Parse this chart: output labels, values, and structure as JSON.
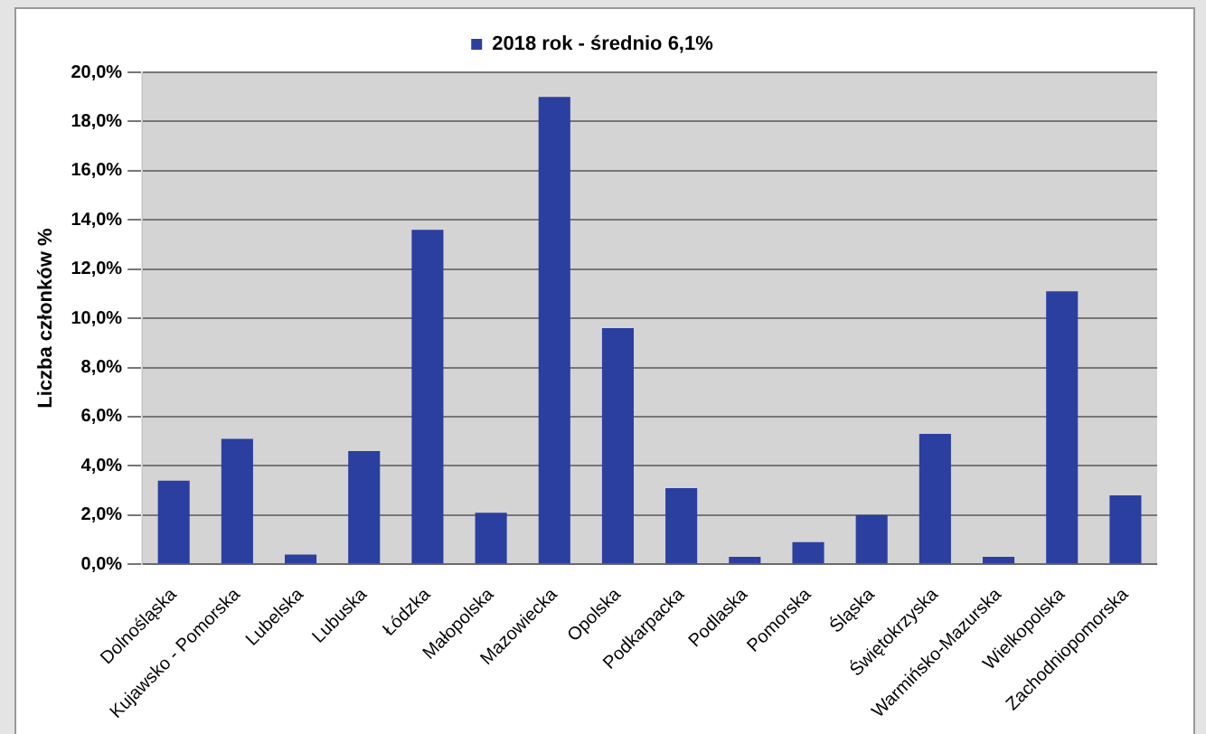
{
  "chart_data": {
    "type": "bar",
    "ylabel": "Liczba członków %",
    "categories": [
      "Dolnośląska",
      "Kujawsko - Pomorska",
      "Lubelska",
      "Lubuska",
      "Łódzka",
      "Małopolska",
      "Mazowiecka",
      "Opolska",
      "Podkarpacka",
      "Podlaska",
      "Pomorska",
      "Śląska",
      "Świętokrzyska",
      "Warmińsko-Mazurska",
      "Wielkopolska",
      "Zachodniopomorska"
    ],
    "series": [
      {
        "name": "2018 rok - średnio 6,1%",
        "color": "#2b3fa0",
        "values": [
          3.4,
          5.1,
          0.4,
          4.6,
          13.6,
          2.1,
          19.0,
          9.6,
          3.1,
          0.3,
          0.9,
          2.0,
          5.3,
          0.3,
          11.1,
          2.8
        ]
      }
    ],
    "ylim": [
      0,
      20
    ],
    "yticks": [
      {
        "value": 0,
        "label": "0,0%"
      },
      {
        "value": 2,
        "label": "2,0%"
      },
      {
        "value": 4,
        "label": "4,0%"
      },
      {
        "value": 6,
        "label": "6,0%"
      },
      {
        "value": 8,
        "label": "8,0%"
      },
      {
        "value": 10,
        "label": "10,0%"
      },
      {
        "value": 12,
        "label": "12,0%"
      },
      {
        "value": 14,
        "label": "14,0%"
      },
      {
        "value": 16,
        "label": "16,0%"
      },
      {
        "value": 18,
        "label": "18,0%"
      },
      {
        "value": 20,
        "label": "20,0%"
      }
    ],
    "grid": "y",
    "legend": "top"
  }
}
